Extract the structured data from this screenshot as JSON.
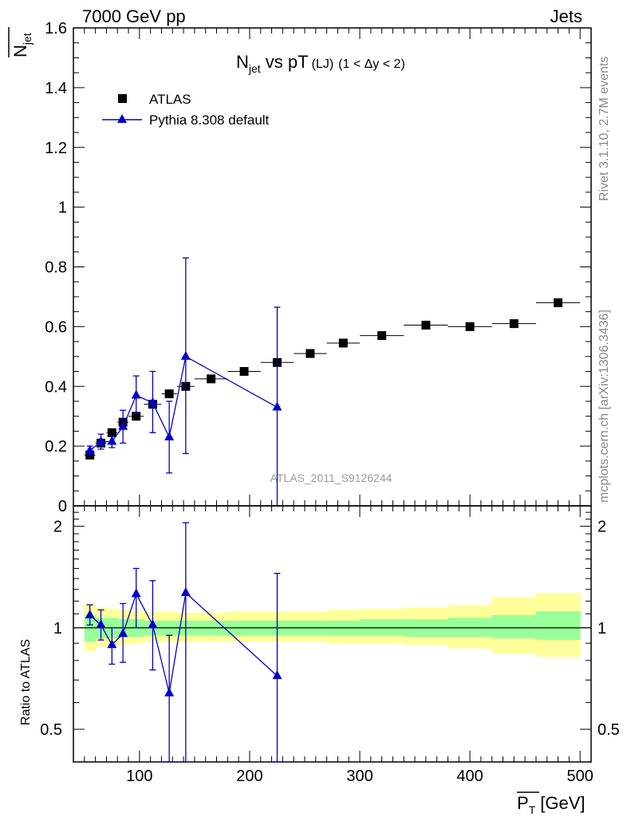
{
  "header": {
    "left": "7000 GeV pp",
    "right": "Jets"
  },
  "title": {
    "main": "N",
    "main_sub": "jet",
    "vs": " vs pT",
    "small": "(LJ)",
    "cond": "(1 < Δy < 2)"
  },
  "side_text": {
    "top": "Rivet 3.1.10,  2.7M events",
    "bottom": "mcplots.cern.ch [arXiv:1306.3436]"
  },
  "watermark": "ATLAS_2011_S9126244",
  "axes": {
    "y_top_label": "N",
    "y_top_label_sub": "jet",
    "y_bottom_label": "Ratio to ATLAS",
    "x_label_main": "P",
    "x_label_sub": "T",
    "x_label_unit": "[GeV]",
    "x_ticks": [
      "100",
      "200",
      "300",
      "400",
      "500"
    ],
    "y_top_ticks": [
      "0",
      "0.2",
      "0.4",
      "0.6",
      "0.8",
      "1",
      "1.2",
      "1.4",
      "1.6"
    ],
    "y_bottom_ticks": [
      "0.5",
      "1",
      "2"
    ]
  },
  "legend": {
    "entries": [
      "ATLAS",
      "Pythia 8.308 default"
    ]
  },
  "colors": {
    "mc": "#0000cc",
    "data": "#000000",
    "band_inner": "#99ff99",
    "band_outer": "#ffff99"
  },
  "chart_data": {
    "type": "scatter",
    "xlim": [
      40,
      510
    ],
    "ylim": [
      0,
      1.6
    ],
    "ratio_ylim": [
      0.4,
      2.3
    ],
    "ratio_scale": "log",
    "series": [
      {
        "name": "ATLAS",
        "x": [
          55,
          65,
          75,
          85,
          97,
          112,
          127,
          142,
          165,
          195,
          225,
          255,
          285,
          320,
          360,
          400,
          440,
          480
        ],
        "y": [
          0.17,
          0.21,
          0.245,
          0.28,
          0.3,
          0.34,
          0.375,
          0.4,
          0.425,
          0.45,
          0.48,
          0.51,
          0.545,
          0.57,
          0.605,
          0.6,
          0.61,
          0.68
        ],
        "xerr": [
          5,
          5,
          5,
          5,
          7,
          8,
          7,
          8,
          15,
          15,
          15,
          15,
          15,
          20,
          20,
          20,
          20,
          20
        ]
      },
      {
        "name": "Pythia 8.308 default",
        "x": [
          55,
          65,
          75,
          85,
          97,
          112,
          127,
          142,
          225
        ],
        "y": [
          0.185,
          0.215,
          0.215,
          0.265,
          0.37,
          0.345,
          0.23,
          0.5,
          0.33
        ],
        "yerr_low": [
          0.015,
          0.025,
          0.02,
          0.055,
          0.06,
          0.1,
          0.12,
          0.325,
          0.33
        ],
        "yerr_high": [
          0.015,
          0.025,
          0.02,
          0.055,
          0.065,
          0.105,
          0.12,
          0.33,
          0.335
        ]
      }
    ],
    "ratio": {
      "name": "Pythia 8.308 default",
      "x": [
        55,
        65,
        75,
        85,
        97,
        112,
        127,
        142,
        225
      ],
      "y": [
        1.09,
        1.02,
        0.89,
        0.96,
        1.26,
        1.02,
        0.64,
        1.27,
        0.72
      ],
      "y_low": [
        1.02,
        0.92,
        0.78,
        0.79,
        1.0,
        0.75,
        0.4,
        0.38,
        0.4
      ],
      "y_high": [
        1.17,
        1.13,
        1.0,
        1.18,
        1.5,
        1.38,
        0.95,
        2.05,
        1.45
      ]
    },
    "bands": {
      "x_edges": [
        50,
        60,
        70,
        80,
        90,
        104,
        120,
        134,
        150,
        180,
        210,
        240,
        270,
        300,
        340,
        380,
        420,
        460,
        500
      ],
      "inner": [
        [
          0.91,
          1.09
        ],
        [
          0.93,
          1.07
        ],
        [
          0.93,
          1.07
        ],
        [
          0.94,
          1.06
        ],
        [
          0.94,
          1.06
        ],
        [
          0.95,
          1.05
        ],
        [
          0.95,
          1.05
        ],
        [
          0.95,
          1.05
        ],
        [
          0.95,
          1.05
        ],
        [
          0.95,
          1.05
        ],
        [
          0.95,
          1.05
        ],
        [
          0.95,
          1.05
        ],
        [
          0.95,
          1.05
        ],
        [
          0.95,
          1.06
        ],
        [
          0.94,
          1.06
        ],
        [
          0.94,
          1.07
        ],
        [
          0.93,
          1.09
        ],
        [
          0.92,
          1.12
        ]
      ],
      "outer": [
        [
          0.85,
          1.18
        ],
        [
          0.88,
          1.15
        ],
        [
          0.88,
          1.14
        ],
        [
          0.89,
          1.13
        ],
        [
          0.9,
          1.12
        ],
        [
          0.91,
          1.12
        ],
        [
          0.91,
          1.12
        ],
        [
          0.91,
          1.11
        ],
        [
          0.91,
          1.11
        ],
        [
          0.91,
          1.12
        ],
        [
          0.91,
          1.12
        ],
        [
          0.91,
          1.12
        ],
        [
          0.9,
          1.13
        ],
        [
          0.9,
          1.14
        ],
        [
          0.89,
          1.15
        ],
        [
          0.87,
          1.17
        ],
        [
          0.84,
          1.23
        ],
        [
          0.82,
          1.27
        ]
      ]
    }
  }
}
